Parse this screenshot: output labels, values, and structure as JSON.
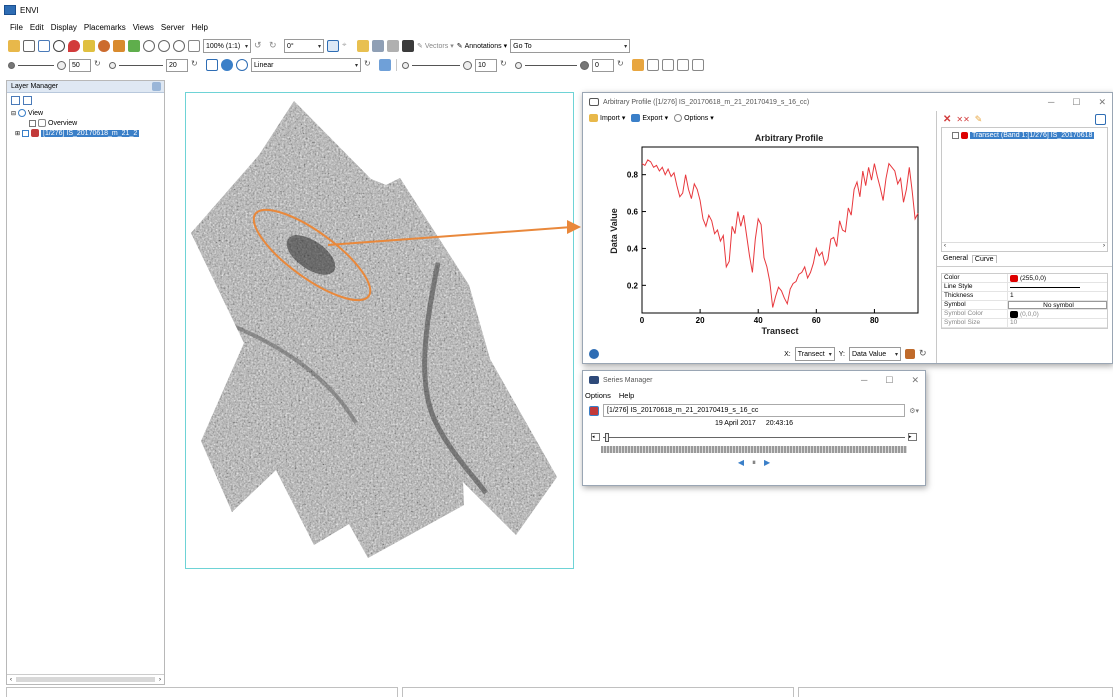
{
  "app": {
    "title": "ENVI"
  },
  "menu": [
    "File",
    "Edit",
    "Display",
    "Placemarks",
    "Views",
    "Server",
    "Help"
  ],
  "toolbar1": {
    "zoom_value": "100% (1:1)",
    "rotation_value": "0°",
    "vectors_label": "Vectors",
    "annotations_label": "Annotations",
    "goto_value": "Go To"
  },
  "toolbar2": {
    "brightness": "50",
    "contrast": "20",
    "stretch_value": "Linear",
    "sharpen": "10",
    "transparency": "0"
  },
  "layer_manager": {
    "title": "Layer Manager",
    "root": "View",
    "overview": "Overview",
    "layer": "[1/276] IS_20170618_m_21_2"
  },
  "profile_window": {
    "title": "Arbitrary Profile ([1/276] IS_20170618_m_21_20170419_s_16_cc)",
    "import_label": "Import",
    "export_label": "Export",
    "options_label": "Options",
    "tree_item": "Transect (Band 1:[1/276] IS_20170618",
    "tabs": [
      "General",
      "Curve"
    ],
    "properties": [
      {
        "key": "Color",
        "value": "(255,0,0)"
      },
      {
        "key": "Line Style",
        "value": ""
      },
      {
        "key": "Thickness",
        "value": "1"
      },
      {
        "key": "Symbol",
        "value": "No symbol"
      },
      {
        "key": "Symbol Color",
        "value": "(0,0,0)"
      },
      {
        "key": "Symbol Size",
        "value": "10"
      }
    ],
    "x_axis_select": "Transect",
    "y_axis_select": "Data Value",
    "x_label": "X:",
    "y_label": "Y:"
  },
  "chart_data": {
    "type": "line",
    "title": "Arbitrary Profile",
    "xlabel": "Transect",
    "ylabel": "Data Value",
    "xlim": [
      0,
      95
    ],
    "ylim": [
      0.05,
      0.95
    ],
    "x_ticks": [
      0,
      20,
      40,
      60,
      80
    ],
    "y_ticks": [
      0.2,
      0.4,
      0.6,
      0.8
    ],
    "grid": false,
    "series": [
      {
        "color": "#e8383d",
        "x": [
          0,
          1,
          2,
          3,
          4,
          5,
          6,
          7,
          8,
          9,
          10,
          11,
          12,
          13,
          14,
          15,
          16,
          17,
          18,
          19,
          20,
          21,
          22,
          23,
          24,
          25,
          26,
          27,
          28,
          29,
          30,
          31,
          32,
          33,
          34,
          35,
          36,
          37,
          38,
          39,
          40,
          41,
          42,
          43,
          44,
          45,
          46,
          47,
          48,
          49,
          50,
          51,
          52,
          53,
          54,
          55,
          56,
          57,
          58,
          59,
          60,
          61,
          62,
          63,
          64,
          65,
          66,
          67,
          68,
          69,
          70,
          71,
          72,
          73,
          74,
          75,
          76,
          77,
          78,
          79,
          80,
          81,
          82,
          83,
          84,
          85,
          86,
          87,
          88,
          89,
          90,
          91,
          92,
          93,
          94,
          95
        ],
        "y": [
          0.86,
          0.85,
          0.88,
          0.87,
          0.84,
          0.85,
          0.82,
          0.84,
          0.8,
          0.83,
          0.79,
          0.81,
          0.74,
          0.68,
          0.7,
          0.8,
          0.72,
          0.67,
          0.75,
          0.72,
          0.66,
          0.56,
          0.52,
          0.58,
          0.55,
          0.48,
          0.5,
          0.44,
          0.47,
          0.3,
          0.33,
          0.52,
          0.48,
          0.6,
          0.52,
          0.58,
          0.47,
          0.36,
          0.27,
          0.45,
          0.56,
          0.53,
          0.35,
          0.3,
          0.22,
          0.08,
          0.14,
          0.19,
          0.17,
          0.13,
          0.1,
          0.18,
          0.21,
          0.22,
          0.26,
          0.27,
          0.3,
          0.24,
          0.27,
          0.32,
          0.4,
          0.36,
          0.38,
          0.31,
          0.34,
          0.45,
          0.46,
          0.41,
          0.55,
          0.5,
          0.49,
          0.62,
          0.58,
          0.72,
          0.76,
          0.68,
          0.82,
          0.74,
          0.84,
          0.77,
          0.86,
          0.79,
          0.73,
          0.66,
          0.78,
          0.86,
          0.84,
          0.82,
          0.75,
          0.78,
          0.65,
          0.72,
          0.84,
          0.71,
          0.56,
          0.59
        ]
      }
    ]
  },
  "series_manager": {
    "title": "Series Manager",
    "menu": [
      "Options",
      "Help"
    ],
    "dataset": "[1/276] IS_20170618_m_21_20170419_s_16_cc",
    "date": "19 April 2017",
    "time": "20:43:16"
  }
}
